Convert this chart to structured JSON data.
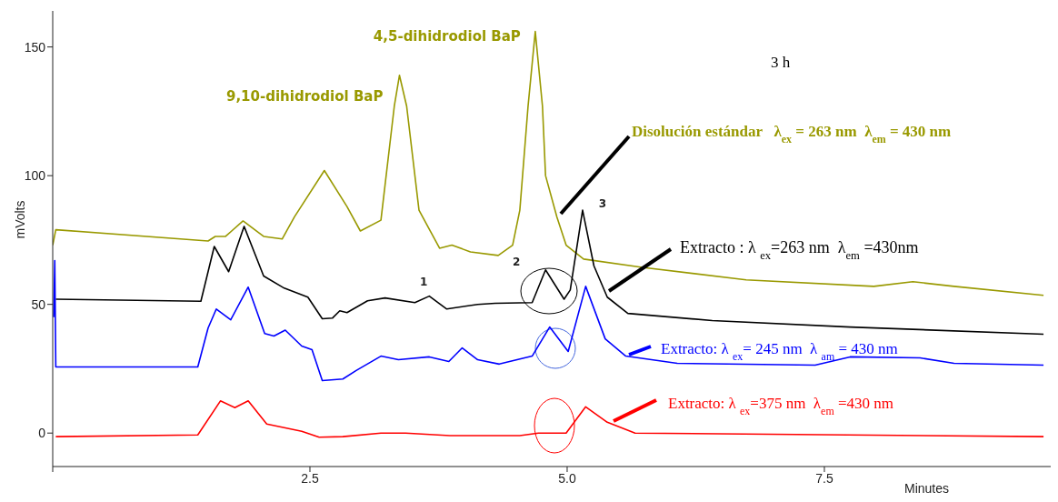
{
  "chart_data": {
    "type": "line",
    "xlabel": "Minutes",
    "ylabel": "mVolts",
    "xlim": [
      0,
      9.7
    ],
    "ylim": [
      -13,
      164
    ],
    "xticks": [
      {
        "value": 0,
        "label": null
      },
      2.5,
      {
        "value": 5,
        "label": "5.0"
      },
      7.5
    ],
    "yticks": [
      0,
      50,
      100,
      150
    ],
    "grid": false,
    "legend": "right",
    "marker": "none",
    "line_style": "solid",
    "annotations": [
      "3 h",
      {
        "text": "9,10-dihidrodiol BaP",
        "x": 3.37,
        "y": 139
      },
      {
        "text": "4,5-dihidrodiol BaP",
        "x": 4.69,
        "y": 156
      },
      {
        "text": "1",
        "x": 3.66,
        "y": 53
      },
      {
        "text": "2",
        "x": 4.79,
        "y": 63
      },
      {
        "text": "3",
        "x": 5.15,
        "y": 87
      }
    ],
    "series": [
      {
        "name": "Disolución estándar   λ$_{ex}$ = 263 nm  λ$_{em}$ = 430 nm",
        "color": "#999900",
        "x": [
          0,
          0.03,
          1.51,
          1.58,
          1.68,
          1.85,
          2.05,
          2.23,
          2.35,
          2.64,
          2.86,
          2.99,
          3.19,
          3.32,
          3.37,
          3.44,
          3.56,
          3.76,
          3.88,
          4.06,
          4.33,
          4.47,
          4.54,
          4.62,
          4.69,
          4.76,
          4.79,
          4.9,
          4.99,
          5.16,
          5.73,
          6.74,
          7.98,
          8.36,
          8.76,
          9.63
        ],
        "values": [
          73,
          79,
          74.6,
          76.4,
          76.4,
          82.4,
          76.4,
          75.4,
          84,
          102,
          88,
          78.5,
          82.7,
          127,
          139,
          127,
          86.6,
          71.8,
          73,
          70.4,
          69,
          73,
          86.6,
          127,
          156,
          127,
          100,
          84,
          73,
          67.6,
          64.4,
          59.5,
          57,
          58.8,
          57,
          53.5
        ]
      },
      {
        "name": "Extracto : λ $_{ex}$=263 nm  λ$_{em}$ =430nm",
        "color": "#000000",
        "x": [
          0.03,
          1.44,
          1.57,
          1.71,
          1.86,
          2.05,
          2.25,
          2.48,
          2.62,
          2.72,
          2.79,
          2.86,
          3.06,
          3.23,
          3.52,
          3.66,
          3.83,
          4.13,
          4.3,
          4.66,
          4.79,
          4.97,
          5.03,
          5.15,
          5.26,
          5.39,
          5.59,
          6.41,
          7.75,
          9.63
        ],
        "values": [
          52,
          51.2,
          72.5,
          62.7,
          80.3,
          61,
          56.3,
          52.8,
          44.4,
          44.7,
          47.5,
          46.8,
          51.4,
          52.5,
          50.7,
          53.2,
          48.2,
          50,
          50.4,
          50.7,
          63.4,
          52,
          55.6,
          86.6,
          65,
          52.8,
          46.5,
          43.7,
          41.2,
          38.4
        ]
      },
      {
        "name": "Extracto: λ $_{ex}$= 245 nm  λ $_{am}$ = 430 nm",
        "color": "#0000ff",
        "x": [
          0.01,
          0.02,
          0.03,
          1.41,
          1.51,
          1.59,
          1.73,
          1.9,
          2.06,
          2.15,
          2.26,
          2.42,
          2.52,
          2.62,
          2.82,
          2.95,
          3.19,
          3.36,
          3.66,
          3.85,
          3.98,
          4.13,
          4.34,
          4.66,
          4.83,
          5.01,
          5.18,
          5.37,
          5.57,
          6.07,
          7.41,
          7.75,
          8.43,
          8.76,
          9.63
        ],
        "values": [
          45,
          67,
          25.7,
          25.7,
          40.8,
          48.2,
          44,
          56.7,
          38.7,
          37.7,
          40,
          33.8,
          32.4,
          20.4,
          21,
          24.3,
          29.9,
          28.5,
          29.6,
          27.8,
          33.1,
          28.5,
          26.8,
          29.9,
          41.2,
          31.7,
          57,
          36.6,
          29.9,
          27.1,
          26.4,
          29.6,
          29.2,
          27.1,
          26.4
        ]
      },
      {
        "name": "Extracto: λ $_{ex}$=375 nm  λ$_{em}$ =430 nm",
        "color": "#ff0000",
        "x": [
          0.03,
          1.41,
          1.63,
          1.77,
          1.9,
          2.08,
          2.42,
          2.59,
          2.82,
          3.19,
          3.43,
          3.86,
          4.54,
          4.72,
          4.99,
          5.18,
          5.39,
          5.66,
          9.63
        ],
        "values": [
          -1.4,
          -0.7,
          12.5,
          9.9,
          12.5,
          3.5,
          0.7,
          -1.6,
          -1.4,
          0,
          0,
          -1,
          -1,
          0,
          0,
          10.2,
          4.2,
          0,
          -1.4
        ]
      }
    ]
  }
}
